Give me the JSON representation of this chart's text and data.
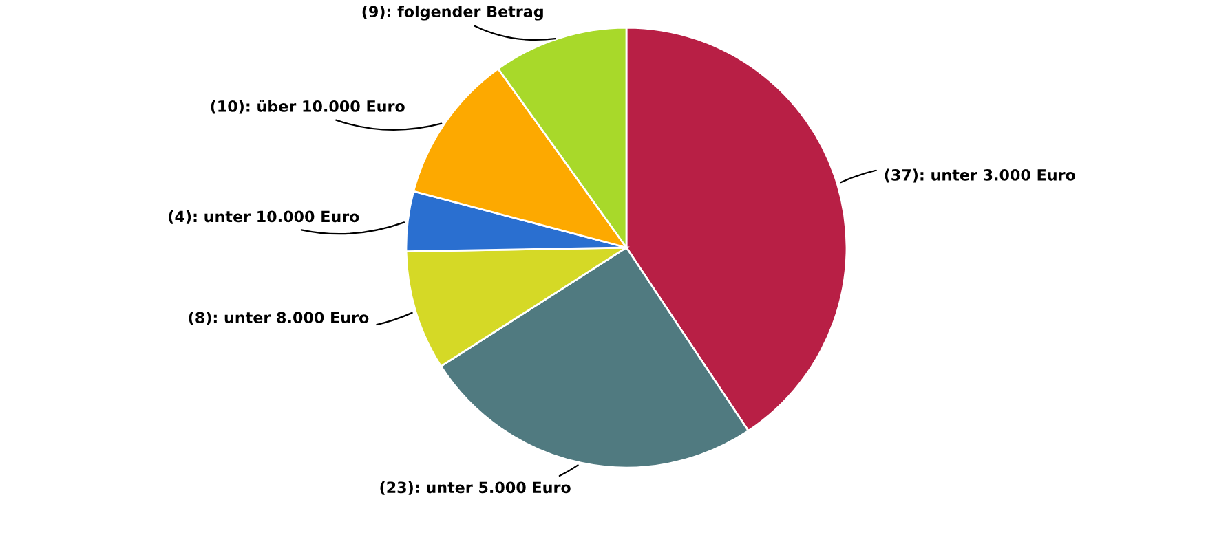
{
  "chart_data": {
    "type": "pie",
    "categories": [
      "(37): unter 3.000 Euro",
      "(23): unter 5.000 Euro",
      "(8): unter 8.000 Euro",
      "(4): unter 10.000 Euro",
      "(10): über 10.000 Euro",
      "(9): folgender Betrag"
    ],
    "values": [
      37,
      23,
      8,
      4,
      10,
      9
    ],
    "colors": [
      "#b81f45",
      "#507a80",
      "#d5d926",
      "#2a6fd0",
      "#fda900",
      "#a8d92a"
    ],
    "legend": false
  }
}
